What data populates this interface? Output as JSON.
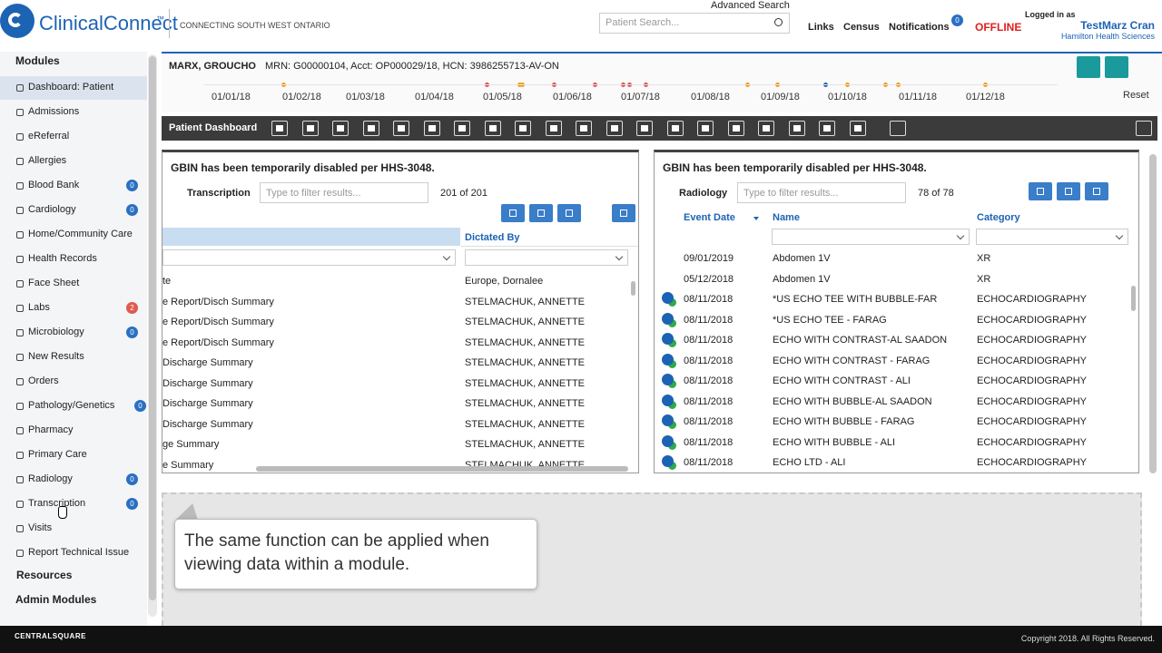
{
  "header": {
    "logo": "ClinicalConnect",
    "trademark": "™",
    "tagline": "CONNECTING SOUTH WEST ONTARIO",
    "advanced_search": "Advanced Search",
    "search_placeholder": "Patient Search...",
    "nav": [
      "Links",
      "Census",
      "Notifications"
    ],
    "notifications_count": "0",
    "status": "OFFLINE",
    "logged_in_label": "Logged in as",
    "user": "TestMarz Cran",
    "organization": "Hamilton Health Sciences"
  },
  "patient": {
    "name": "MARX, GROUCHO",
    "info": "MRN: G00000104, Acct: OP000029/18, HCN: 3986255713-AV-ON"
  },
  "timeline": {
    "dates": [
      "01/01/18",
      "01/02/18",
      "01/03/18",
      "01/04/18",
      "01/05/18",
      "01/06/18",
      "01/07/18",
      "01/08/18",
      "01/09/18",
      "01/10/18",
      "01/11/18",
      "01/12/18"
    ],
    "reset": "Reset"
  },
  "sidebar": {
    "modules_title": "Modules",
    "items": [
      {
        "label": "Dashboard: Patient"
      },
      {
        "label": "Admissions"
      },
      {
        "label": "eReferral"
      },
      {
        "label": "Allergies"
      },
      {
        "label": "Blood Bank",
        "badge": "0"
      },
      {
        "label": "Cardiology",
        "badge": "0"
      },
      {
        "label": "Home/Community Care"
      },
      {
        "label": "Health Records"
      },
      {
        "label": "Face Sheet"
      },
      {
        "label": "Labs",
        "badge": "2"
      },
      {
        "label": "Microbiology",
        "badge": "0"
      },
      {
        "label": "New Results"
      },
      {
        "label": "Orders"
      },
      {
        "label": "Pathology/Genetics",
        "badge": "0"
      },
      {
        "label": "Pharmacy"
      },
      {
        "label": "Primary Care"
      },
      {
        "label": "Radiology",
        "badge": "0"
      },
      {
        "label": "Transcription",
        "badge": "0"
      },
      {
        "label": "Visits"
      },
      {
        "label": "Report Technical Issue"
      }
    ],
    "resources": "Resources",
    "admin_modules": "Admin Modules"
  },
  "dashboard": {
    "title": "Patient Dashboard"
  },
  "left_panel": {
    "notice": "GBIN has been temporarily disabled per HHS-3048.",
    "title": "Transcription",
    "filter_placeholder": "Type to filter results...",
    "count": "201 of 201",
    "column": "Dictated By",
    "rows": [
      [
        "te",
        "Europe, Dornalee"
      ],
      [
        "e Report/Disch Summary",
        "STELMACHUK, ANNETTE"
      ],
      [
        "e Report/Disch Summary",
        "STELMACHUK, ANNETTE"
      ],
      [
        "e Report/Disch Summary",
        "STELMACHUK, ANNETTE"
      ],
      [
        "Discharge Summary",
        "STELMACHUK, ANNETTE"
      ],
      [
        "Discharge Summary",
        "STELMACHUK, ANNETTE"
      ],
      [
        "Discharge Summary",
        "STELMACHUK, ANNETTE"
      ],
      [
        "Discharge Summary",
        "STELMACHUK, ANNETTE"
      ],
      [
        "ge Summary",
        "STELMACHUK, ANNETTE"
      ],
      [
        "e Summary",
        "STELMACHUK, ANNETTE"
      ]
    ]
  },
  "right_panel": {
    "notice": "GBIN has been temporarily disabled per HHS-3048.",
    "title": "Radiology",
    "filter_placeholder": "Type to filter results...",
    "count": "78 of 78",
    "columns": [
      "Event Date",
      "Name",
      "Category"
    ],
    "rows": [
      [
        "09/01/2019",
        "Abdomen 1V",
        "XR"
      ],
      [
        "05/12/2018",
        "Abdomen 1V",
        "XR"
      ],
      [
        "08/11/2018",
        "*US ECHO TEE WITH BUBBLE-FAR",
        "ECHOCARDIOGRAPHY"
      ],
      [
        "08/11/2018",
        "*US ECHO TEE - FARAG",
        "ECHOCARDIOGRAPHY"
      ],
      [
        "08/11/2018",
        "ECHO WITH CONTRAST-AL SAADON",
        "ECHOCARDIOGRAPHY"
      ],
      [
        "08/11/2018",
        "ECHO WITH CONTRAST - FARAG",
        "ECHOCARDIOGRAPHY"
      ],
      [
        "08/11/2018",
        "ECHO WITH CONTRAST - ALI",
        "ECHOCARDIOGRAPHY"
      ],
      [
        "08/11/2018",
        "ECHO WITH BUBBLE-AL SAADON",
        "ECHOCARDIOGRAPHY"
      ],
      [
        "08/11/2018",
        "ECHO WITH BUBBLE - FARAG",
        "ECHOCARDIOGRAPHY"
      ],
      [
        "08/11/2018",
        "ECHO WITH BUBBLE - ALI",
        "ECHOCARDIOGRAPHY"
      ],
      [
        "08/11/2018",
        "ECHO LTD - ALI",
        "ECHOCARDIOGRAPHY"
      ]
    ]
  },
  "callout": "The same function can be applied when viewing data within a module.",
  "footer": {
    "brand": "CENTRALSQUARE",
    "copyright": "Copyright 2018. All Rights Reserved."
  }
}
